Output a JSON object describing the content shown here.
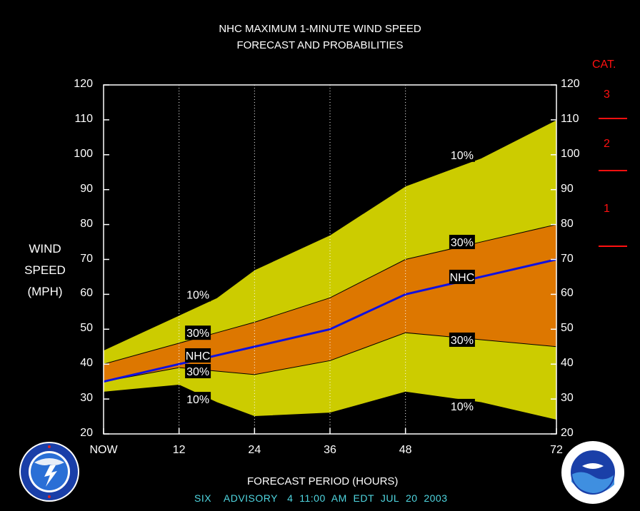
{
  "chart_data": {
    "type": "area",
    "title": "NHC MAXIMUM 1-MINUTE WIND SPEED",
    "subtitle": "FORECAST AND PROBABILITIES",
    "xlabel": "FORECAST PERIOD (HOURS)",
    "ylabel_lines": [
      "WIND",
      "SPEED",
      "(MPH)"
    ],
    "ylim": [
      20,
      120
    ],
    "y_ticks": [
      "20",
      "30",
      "40",
      "50",
      "60",
      "70",
      "80",
      "90",
      "100",
      "110",
      "120"
    ],
    "xlim": [
      0,
      72
    ],
    "x_ticks": [
      {
        "x": 0,
        "label": "NOW"
      },
      {
        "x": 12,
        "label": "12"
      },
      {
        "x": 24,
        "label": "24"
      },
      {
        "x": 36,
        "label": "36"
      },
      {
        "x": 48,
        "label": "48"
      },
      {
        "x": 72,
        "label": "72"
      }
    ],
    "dotted_gridlines_x": [
      12,
      24,
      36,
      48
    ],
    "x": [
      0,
      6,
      12,
      18,
      24,
      36,
      48,
      60,
      72
    ],
    "series": [
      {
        "name": "10%",
        "values": [
          44,
          49,
          54,
          59,
          67,
          77,
          91,
          99,
          110
        ]
      },
      {
        "name": "30%",
        "values": [
          40,
          43,
          46,
          49,
          52,
          59,
          70,
          75,
          80
        ]
      },
      {
        "name": "NHC",
        "values": [
          35,
          37.5,
          40,
          42.5,
          45,
          50,
          60,
          65,
          70
        ]
      },
      {
        "name": "30%",
        "values": [
          35,
          37,
          39,
          38,
          37,
          41,
          49,
          47,
          45
        ]
      },
      {
        "name": "10%",
        "values": [
          32,
          33,
          34,
          29,
          25,
          26,
          32,
          29,
          24
        ]
      }
    ],
    "annotations": [
      {
        "text": "10%",
        "x": 15,
        "y": 60
      },
      {
        "text": "30%",
        "x": 15,
        "y": 49
      },
      {
        "text": "NHC",
        "x": 15,
        "y": 42.5
      },
      {
        "text": "30%",
        "x": 15,
        "y": 38
      },
      {
        "text": "10%",
        "x": 15,
        "y": 30
      },
      {
        "text": "10%",
        "x": 57,
        "y": 100
      },
      {
        "text": "30%",
        "x": 57,
        "y": 75
      },
      {
        "text": "NHC",
        "x": 57,
        "y": 65
      },
      {
        "text": "30%",
        "x": 57,
        "y": 47
      },
      {
        "text": "10%",
        "x": 57,
        "y": 28
      }
    ],
    "category_scale": {
      "title": "CAT.",
      "labels": [
        "3",
        "2",
        "1"
      ],
      "thresholds_mph": [
        111,
        96,
        74
      ]
    },
    "colors": {
      "outer_band": "#cccc00",
      "inner_band": "#dd7700",
      "nhc_line": "#1010e0",
      "category": "#ff1010",
      "footer": "#4fd6e0",
      "grid": "#ffffff"
    },
    "footer": {
      "advisory_parts": [
        "SIX",
        "ADVISORY",
        "4",
        "11:00",
        "AM",
        "EDT",
        "JUL",
        "20",
        "2003"
      ]
    },
    "logos": {
      "left": "National Weather Service logo",
      "right": "NOAA logo"
    }
  }
}
